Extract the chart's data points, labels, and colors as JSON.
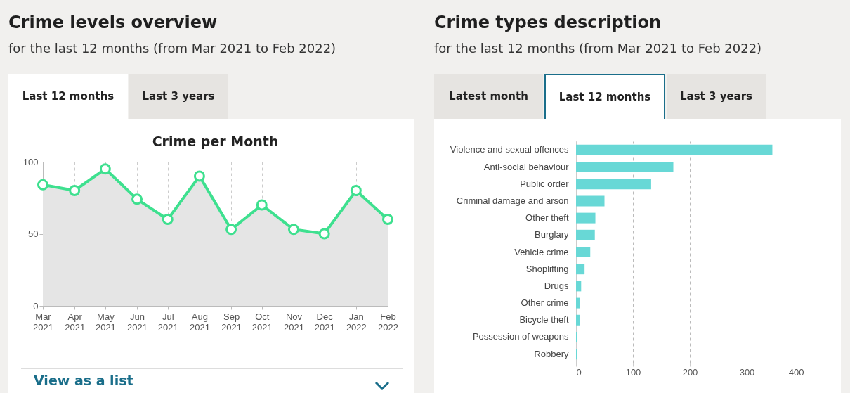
{
  "chart_data": [
    {
      "type": "area",
      "title": "Crime levels overview",
      "subtitle": "for the last 12 months (from Mar 2021 to Feb 2022)",
      "annotations": [
        "Last 12 months",
        "Last 3 years",
        "Crime per Month",
        "View as a list"
      ],
      "x": [
        "2021-03",
        "2021-04",
        "2021-05",
        "2021-06",
        "2021-07",
        "2021-08",
        "2021-09",
        "2021-10",
        "2021-11",
        "2021-12",
        "2022-01",
        "2022-02"
      ],
      "xlim": [
        "2021-03",
        "2022-02"
      ],
      "xticks": [
        {
          "value": "2021-03",
          "label": "Mar 2021"
        },
        {
          "value": "2021-04",
          "label": "Apr 2021"
        },
        {
          "value": "2021-05",
          "label": "May 2021"
        },
        {
          "value": "2021-06",
          "label": "Jun 2021"
        },
        {
          "value": "2021-07",
          "label": "Jul 2021"
        },
        {
          "value": "2021-08",
          "label": "Aug 2021"
        },
        {
          "value": "2021-09",
          "label": "Sep 2021"
        },
        {
          "value": "2021-10",
          "label": "Oct 2021"
        },
        {
          "value": "2021-11",
          "label": "Nov 2021"
        },
        {
          "value": "2021-12",
          "label": "Dec 2021"
        },
        {
          "value": "2022-01",
          "label": "Jan 2022"
        },
        {
          "value": "2022-02",
          "label": "Feb 2022"
        }
      ],
      "series": [
        {
          "color": "#3ee08f",
          "values": [
            84,
            80,
            95,
            74,
            60,
            90,
            53,
            70,
            53,
            50,
            80,
            60
          ]
        }
      ],
      "ylim": [
        0,
        100
      ],
      "yticks": [
        0,
        50,
        100
      ],
      "grid": true,
      "marker": "circle",
      "line_style": "solid"
    },
    {
      "type": "bar",
      "orientation": "horizontal",
      "title": "Crime types description",
      "subtitle": "for the last 12 months (from Mar 2021 to Feb 2022)",
      "annotations": [
        "Latest month",
        "Last 12 months",
        "Last 3 years"
      ],
      "categories": [
        "Violence and sexual offences",
        "Anti-social behaviour",
        "Public order",
        "Criminal damage and arson",
        "Other theft",
        "Burglary",
        "Vehicle crime",
        "Shoplifting",
        "Drugs",
        "Other crime",
        "Bicycle theft",
        "Possession of weapons",
        "Robbery"
      ],
      "series": [
        {
          "color": "#68d8d6",
          "values": [
            345,
            171,
            132,
            50,
            34,
            33,
            25,
            15,
            9,
            7,
            7,
            2,
            2
          ]
        }
      ],
      "xlim": [
        0,
        400
      ],
      "xticks": [
        0,
        100,
        200,
        300,
        400
      ],
      "grid": "x"
    }
  ]
}
